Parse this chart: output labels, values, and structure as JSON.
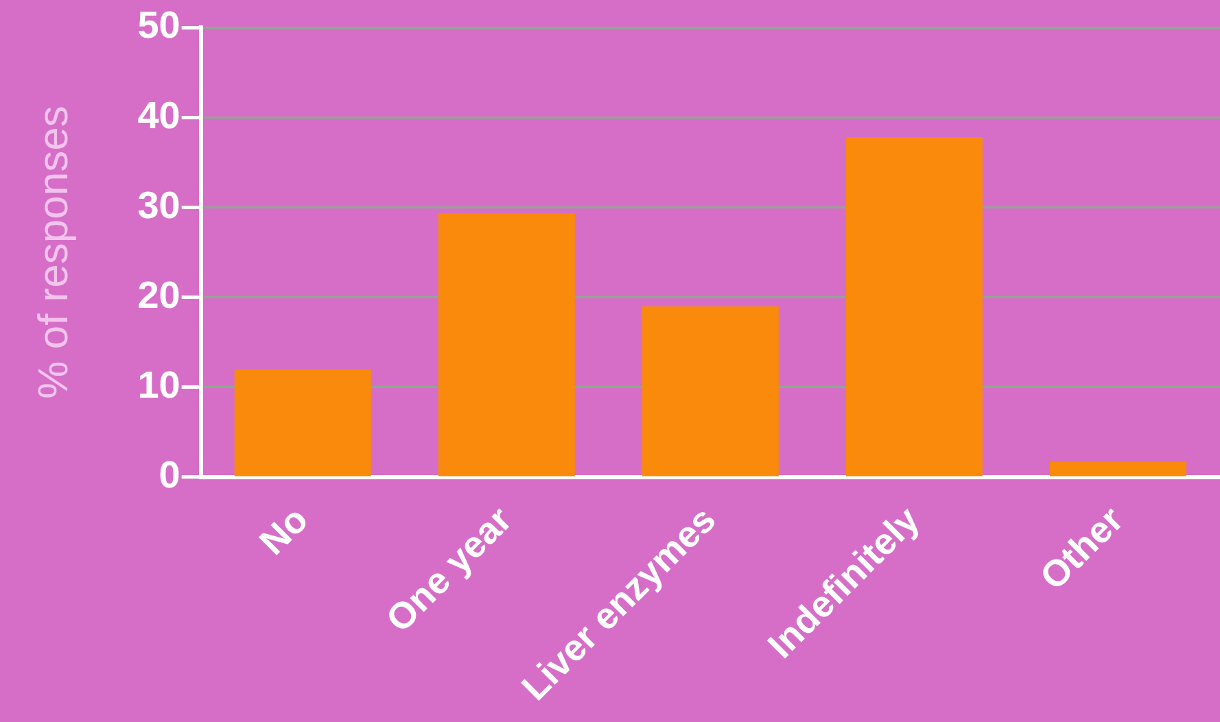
{
  "chart_data": {
    "type": "bar",
    "ylabel": "% of responses",
    "categories": [
      "No",
      "One year",
      "Liver enzymes",
      "Indefinitely",
      "Other"
    ],
    "values": [
      12,
      29.3,
      19,
      37.8,
      1.7
    ],
    "color": "#f98a0b",
    "ylim": [
      0,
      50
    ],
    "yticks": [
      0,
      10,
      20,
      30,
      40,
      50
    ],
    "grid": "y",
    "legend": false
  }
}
